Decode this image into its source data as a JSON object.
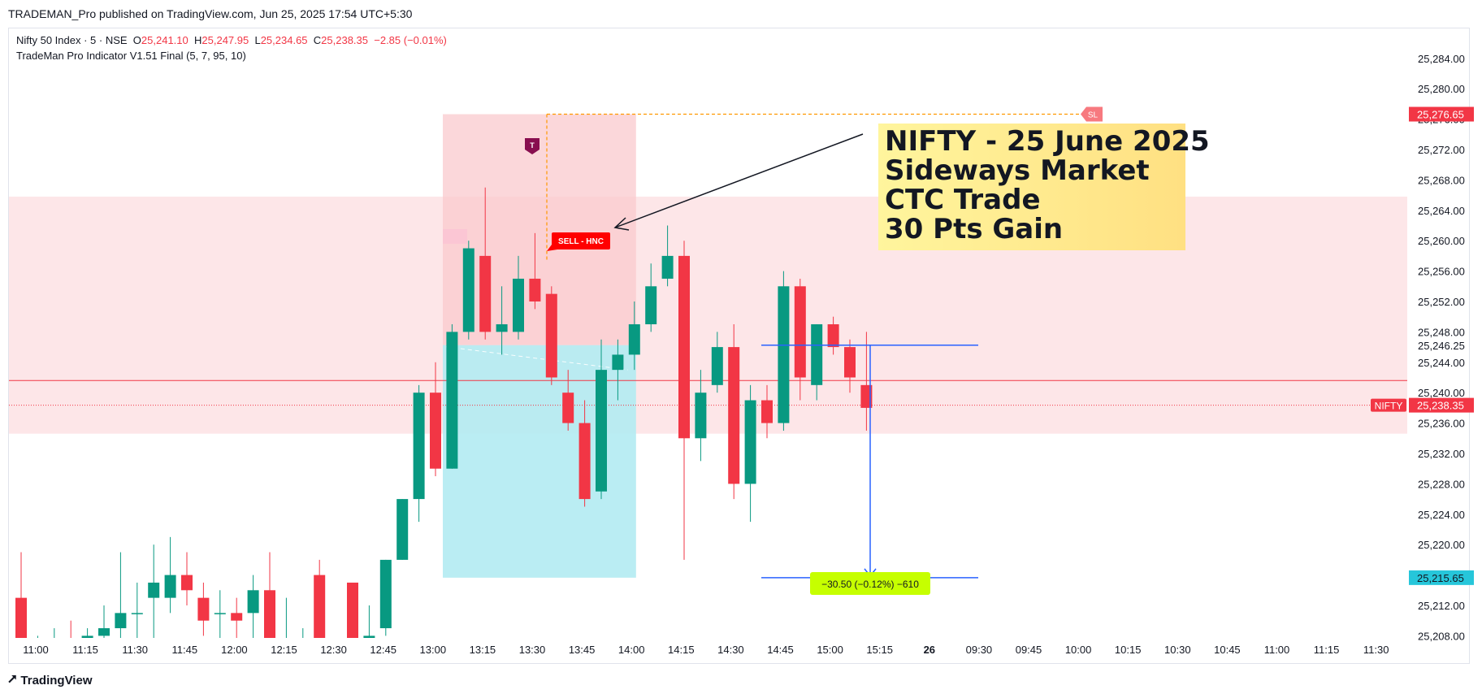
{
  "header": {
    "published": "TRADEMAN_Pro published on TradingView.com, Jun 25, 2025 17:54 UTC+5:30"
  },
  "legend": {
    "symbol": "Nifty 50 Index · 5 · NSE",
    "o_label": "O",
    "o_value": "25,241.10",
    "h_label": "H",
    "h_value": "25,247.95",
    "l_label": "L",
    "l_value": "25,234.65",
    "c_label": "C",
    "c_value": "25,238.35",
    "change": "−2.85 (−0.01%)",
    "indicator": "TradeMan Pro Indicator V1.51 Final (5, 7, 95, 10)"
  },
  "annotation": {
    "line1": "NIFTY - 25 June 2025",
    "line2": "Sideways Market",
    "line3": "CTC Trade",
    "line4": "30 Pts Gain"
  },
  "labels": {
    "sell": "SELL - HNC",
    "sl": "SL",
    "t": "T",
    "measure": "−30.50 (−0.12%) −610",
    "nifty_tag": "NIFTY",
    "price_last": "25,238.35",
    "price_sl": "25,276.65",
    "price_entry": "25,246.25",
    "price_target": "25,215.65"
  },
  "footer": {
    "brand": "TradingView"
  },
  "colors": {
    "up": "#089981",
    "down": "#f23645",
    "zone": "#fde2e4",
    "risk": "#f9c9cd",
    "reward": "#b2ebf2",
    "measure": "#2962ff",
    "sl": "#ff9800"
  },
  "chart_data": {
    "type": "candlestick",
    "y_ticks": [
      "25,284.00",
      "25,280.00",
      "25,276.00",
      "25,272.00",
      "25,268.00",
      "25,264.00",
      "25,260.00",
      "25,256.00",
      "25,252.00",
      "25,248.00",
      "25,244.00",
      "25,240.00",
      "25,236.00",
      "25,232.00",
      "25,228.00",
      "25,224.00",
      "25,220.00",
      "25,216.00",
      "25,212.00",
      "25,208.00"
    ],
    "y_tick_values": [
      25284,
      25280,
      25276,
      25272,
      25268,
      25264,
      25260,
      25256,
      25252,
      25248,
      25244,
      25240,
      25236,
      25232,
      25228,
      25224,
      25220,
      25216,
      25212,
      25208
    ],
    "ylim": [
      25204.9,
      25287.4
    ],
    "x_ticks": [
      "11:00",
      "11:15",
      "11:30",
      "11:45",
      "12:00",
      "12:15",
      "12:30",
      "12:45",
      "13:00",
      "13:15",
      "13:30",
      "13:45",
      "14:00",
      "14:15",
      "14:30",
      "14:45",
      "15:00",
      "15:15",
      "26",
      "09:30",
      "09:45",
      "10:00",
      "10:15",
      "10:30",
      "10:45",
      "11:00",
      "11:15",
      "11:30"
    ],
    "candles": [
      {
        "o": 25213,
        "h": 25219,
        "l": 25202,
        "c": 25204
      },
      {
        "o": 25205,
        "h": 25208,
        "l": 25202,
        "c": 25205
      },
      {
        "o": 25206,
        "h": 25209,
        "l": 25203,
        "c": 25206
      },
      {
        "o": 25206,
        "h": 25210,
        "l": 25203,
        "c": 25205
      },
      {
        "o": 25206,
        "h": 25209,
        "l": 25204,
        "c": 25208
      },
      {
        "o": 25208,
        "h": 25212,
        "l": 25205,
        "c": 25209
      },
      {
        "o": 25209,
        "h": 25219,
        "l": 25206,
        "c": 25211
      },
      {
        "o": 25211,
        "h": 25215,
        "l": 25207,
        "c": 25211
      },
      {
        "o": 25213,
        "h": 25220,
        "l": 25207,
        "c": 25215
      },
      {
        "o": 25213,
        "h": 25221,
        "l": 25211,
        "c": 25216
      },
      {
        "o": 25216,
        "h": 25219,
        "l": 25212,
        "c": 25214
      },
      {
        "o": 25213,
        "h": 25215,
        "l": 25208,
        "c": 25210
      },
      {
        "o": 25211,
        "h": 25214,
        "l": 25207,
        "c": 25211
      },
      {
        "o": 25211,
        "h": 25213,
        "l": 25205,
        "c": 25210
      },
      {
        "o": 25211,
        "h": 25216,
        "l": 25205,
        "c": 25214
      },
      {
        "o": 25214,
        "h": 25219,
        "l": 25204,
        "c": 25204
      },
      {
        "o": 25206,
        "h": 25213,
        "l": 25203,
        "c": 25207
      },
      {
        "o": 25206,
        "h": 25209,
        "l": 25203,
        "c": 25206
      },
      {
        "o": 25216,
        "h": 25218,
        "l": 25201,
        "c": 25205
      },
      {
        "o": 25204,
        "h": 25205,
        "l": 25200,
        "c": 25200
      },
      {
        "o": 25215,
        "h": 25215,
        "l": 25198,
        "c": 25201
      },
      {
        "o": 25204,
        "h": 25212,
        "l": 25201,
        "c": 25208
      },
      {
        "o": 25209,
        "h": 25218,
        "l": 25208,
        "c": 25218
      },
      {
        "o": 25218,
        "h": 25226,
        "l": 25218,
        "c": 25226
      },
      {
        "o": 25226,
        "h": 25241,
        "l": 25223,
        "c": 25240
      },
      {
        "o": 25240,
        "h": 25244,
        "l": 25229,
        "c": 25230
      },
      {
        "o": 25230,
        "h": 25249,
        "l": 25230,
        "c": 25248
      },
      {
        "o": 25248,
        "h": 25260,
        "l": 25247,
        "c": 25259
      },
      {
        "o": 25258,
        "h": 25267,
        "l": 25247,
        "c": 25248
      },
      {
        "o": 25248,
        "h": 25254,
        "l": 25245,
        "c": 25249
      },
      {
        "o": 25248,
        "h": 25258,
        "l": 25247,
        "c": 25255
      },
      {
        "o": 25255,
        "h": 25261,
        "l": 25251,
        "c": 25252
      },
      {
        "o": 25253,
        "h": 25254,
        "l": 25241,
        "c": 25242
      },
      {
        "o": 25240,
        "h": 25243,
        "l": 25235,
        "c": 25236
      },
      {
        "o": 25236,
        "h": 25239,
        "l": 25225,
        "c": 25226
      },
      {
        "o": 25227,
        "h": 25247,
        "l": 25226,
        "c": 25243
      },
      {
        "o": 25243,
        "h": 25247,
        "l": 25239,
        "c": 25245
      },
      {
        "o": 25245,
        "h": 25252,
        "l": 25243,
        "c": 25249
      },
      {
        "o": 25249,
        "h": 25257,
        "l": 25248,
        "c": 25254
      },
      {
        "o": 25255,
        "h": 25262,
        "l": 25254,
        "c": 25258
      },
      {
        "o": 25258,
        "h": 25260,
        "l": 25218,
        "c": 25234
      },
      {
        "o": 25234,
        "h": 25243,
        "l": 25231,
        "c": 25240
      },
      {
        "o": 25241,
        "h": 25248,
        "l": 25240,
        "c": 25246
      },
      {
        "o": 25246,
        "h": 25249,
        "l": 25226,
        "c": 25228
      },
      {
        "o": 25228,
        "h": 25241,
        "l": 25223,
        "c": 25239
      },
      {
        "o": 25239,
        "h": 25241,
        "l": 25234,
        "c": 25236
      },
      {
        "o": 25236,
        "h": 25256,
        "l": 25235,
        "c": 25254
      },
      {
        "o": 25254,
        "h": 25255,
        "l": 25239,
        "c": 25242
      },
      {
        "o": 25241,
        "h": 25249,
        "l": 25239,
        "c": 25249
      },
      {
        "o": 25249,
        "h": 25250,
        "l": 25245,
        "c": 25246
      },
      {
        "o": 25246,
        "h": 25247,
        "l": 25240,
        "c": 25242
      },
      {
        "o": 25241,
        "h": 25248,
        "l": 25235,
        "c": 25238
      }
    ],
    "zone": {
      "top": 25265.8,
      "bottom": 25234.6
    },
    "position": {
      "entry": 25246.25,
      "stop": 25276.65,
      "target": 25215.65
    },
    "hline": 25241.6,
    "last_price": 25238.35,
    "measure": {
      "from": 25246.25,
      "to": 25215.65
    }
  }
}
